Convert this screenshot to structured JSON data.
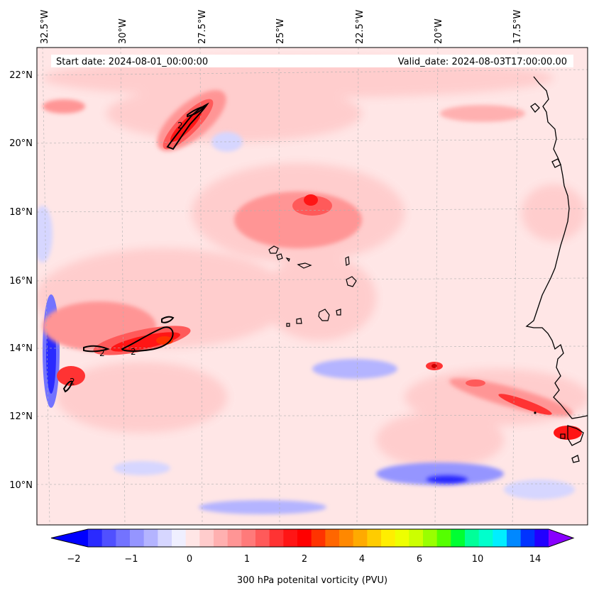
{
  "map": {
    "start_label": "Start date: 2024-08-01_00:00:00",
    "valid_label": "Valid_date: 2024-08-03T17:00:00.00",
    "lon_labels": [
      "32.5°W",
      "30°W",
      "27.5°W",
      "25°W",
      "22.5°W",
      "20°W",
      "17.5°W"
    ],
    "lat_labels": [
      "22°N",
      "20°N",
      "18°N",
      "16°N",
      "14°N",
      "12°N",
      "10°N"
    ],
    "contour_label": "2",
    "colors": {
      "land_line": "#000000",
      "grid": "#b0b0b0",
      "background": "#ffe6e6"
    }
  },
  "colorbar": {
    "title": "300 hPa potenital vorticity (PVU)",
    "tick_labels": [
      "−2",
      "−1",
      "0",
      "1",
      "2",
      "4",
      "6",
      "10",
      "14"
    ],
    "colors": [
      "#0000ff",
      "#2a2aff",
      "#5050ff",
      "#7373ff",
      "#9595ff",
      "#b4b4ff",
      "#d6d6ff",
      "#efefff",
      "#ffe6e6",
      "#ffcccc",
      "#ffb0b0",
      "#ff9595",
      "#ff7a7a",
      "#ff5a5a",
      "#ff3333",
      "#ff1515",
      "#ff0000",
      "#ff3300",
      "#ff6600",
      "#ff8800",
      "#ffaa00",
      "#ffcc00",
      "#ffee00",
      "#eeff00",
      "#ccff00",
      "#99ff00",
      "#55ff00",
      "#00ff33",
      "#00ff99",
      "#00ffcc",
      "#00eeff",
      "#0088ff",
      "#0033ff",
      "#2200ff",
      "#8800ff"
    ]
  }
}
